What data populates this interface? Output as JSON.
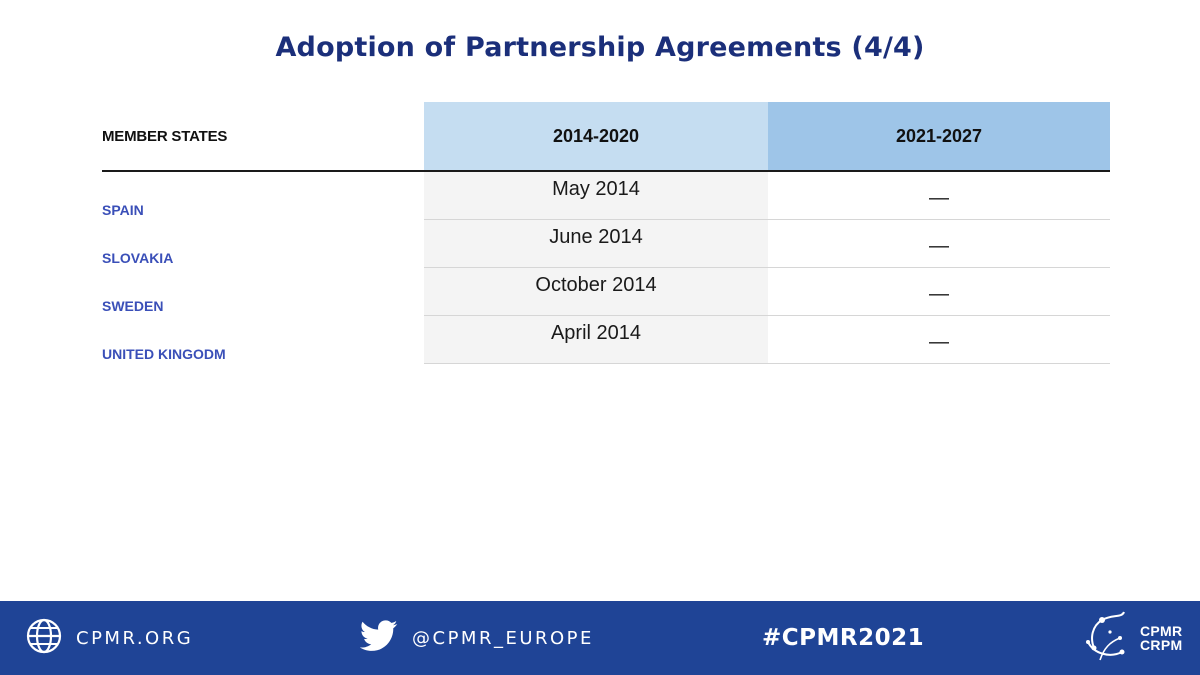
{
  "slide": {
    "title": "Adoption of Partnership Agreements (4/4)"
  },
  "table": {
    "headers": {
      "member_states": "MEMBER STATES",
      "period_1": "2014-2020",
      "period_2": "2021-2027"
    },
    "rows": [
      {
        "member_state": "SPAIN",
        "period_1": "May 2014",
        "period_2": "—"
      },
      {
        "member_state": "SLOVAKIA",
        "period_1": "June 2014",
        "period_2": "—"
      },
      {
        "member_state": "SWEDEN",
        "period_1": "October 2014",
        "period_2": "—"
      },
      {
        "member_state": "UNITED KINGODM",
        "period_1": "April 2014",
        "period_2": "—"
      }
    ],
    "colors": {
      "header_period_1": "#c5ddf1",
      "header_period_2": "#9ec5e8",
      "member_state_text": "#3a4fb8"
    }
  },
  "footer": {
    "website": "CPMR.ORG",
    "twitter": "@CPMR_EUROPE",
    "hashtag": "#CPMR2021",
    "logo_line_1": "CPMR",
    "logo_line_2": "CRPM",
    "background_color": "#1f4496",
    "icons": [
      "globe-icon",
      "twitter-bird-icon",
      "cpmr-logo"
    ]
  }
}
